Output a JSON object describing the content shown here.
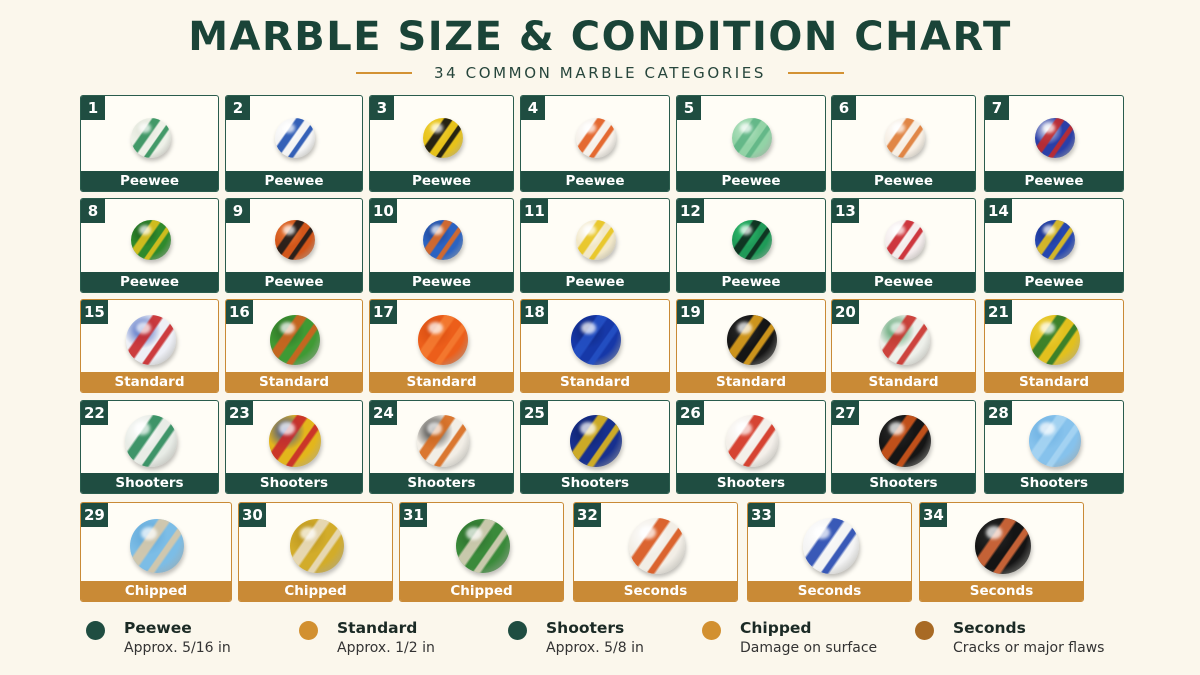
{
  "header": {
    "title": "MARBLE SIZE & CONDITION CHART",
    "subtitle": "34 COMMON MARBLE CATEGORIES"
  },
  "marbles": [
    {
      "number": "1",
      "label": "Peewee",
      "colors": [
        "#eef1e8",
        "#2f8f5a",
        "#e0e4d8"
      ]
    },
    {
      "number": "2",
      "label": "Peewee",
      "colors": [
        "#f4f4f4",
        "#1e4fb0",
        "#ffffff"
      ]
    },
    {
      "number": "3",
      "label": "Peewee",
      "colors": [
        "#e7c21a",
        "#111111",
        "#f0d23a"
      ]
    },
    {
      "number": "4",
      "label": "Peewee",
      "colors": [
        "#f6f1ea",
        "#e25a1c",
        "#ffffff"
      ]
    },
    {
      "number": "5",
      "label": "Peewee",
      "colors": [
        "#92d3a6",
        "#5fb585",
        "#b8e3c4"
      ]
    },
    {
      "number": "6",
      "label": "Peewee",
      "colors": [
        "#f7efe4",
        "#de7a34",
        "#ffffff"
      ]
    },
    {
      "number": "7",
      "label": "Peewee",
      "colors": [
        "#2a3fa8",
        "#c42a2a",
        "#f2f2f2"
      ]
    },
    {
      "number": "8",
      "label": "Peewee",
      "colors": [
        "#2f8a2c",
        "#e0c21c",
        "#1a5a1a"
      ]
    },
    {
      "number": "9",
      "label": "Peewee",
      "colors": [
        "#d2561a",
        "#1a1a1a",
        "#e87a3a"
      ]
    },
    {
      "number": "10",
      "label": "Peewee",
      "colors": [
        "#2b63c2",
        "#e06a22",
        "#1d3f8c"
      ]
    },
    {
      "number": "11",
      "label": "Peewee",
      "colors": [
        "#f2e8c8",
        "#e8c41c",
        "#ffffff"
      ]
    },
    {
      "number": "12",
      "label": "Peewee",
      "colors": [
        "#1f9a58",
        "#0d2a1c",
        "#2ec06e"
      ]
    },
    {
      "number": "13",
      "label": "Peewee",
      "colors": [
        "#f4ecec",
        "#c9222a",
        "#ffffff"
      ]
    },
    {
      "number": "14",
      "label": "Peewee",
      "colors": [
        "#2546b0",
        "#e6c21c",
        "#1a2f86"
      ]
    },
    {
      "number": "15",
      "label": "Standard",
      "colors": [
        "#eef0f6",
        "#c8282a",
        "#2a4fb8"
      ]
    },
    {
      "number": "16",
      "label": "Standard",
      "colors": [
        "#3f9a34",
        "#d2611e",
        "#2a6a22"
      ]
    },
    {
      "number": "17",
      "label": "Standard",
      "colors": [
        "#ec5e1a",
        "#f47a30",
        "#d44a10"
      ]
    },
    {
      "number": "18",
      "label": "Standard",
      "colors": [
        "#1638a8",
        "#2450c4",
        "#0d2478"
      ]
    },
    {
      "number": "19",
      "label": "Standard",
      "colors": [
        "#151515",
        "#e0a11c",
        "#2a2a2a"
      ]
    },
    {
      "number": "20",
      "label": "Standard",
      "colors": [
        "#eef0ea",
        "#c9302a",
        "#2a8a4a"
      ]
    },
    {
      "number": "21",
      "label": "Standard",
      "colors": [
        "#e2c01e",
        "#2a7a2a",
        "#f0d440"
      ]
    },
    {
      "number": "22",
      "label": "Shooters",
      "colors": [
        "#e8ece6",
        "#2a8a5a",
        "#ffffff"
      ]
    },
    {
      "number": "23",
      "label": "Shooters",
      "colors": [
        "#e3b61c",
        "#c8282a",
        "#1f3fa8"
      ]
    },
    {
      "number": "24",
      "label": "Shooters",
      "colors": [
        "#f2eee6",
        "#d86a1c",
        "#1a1a1a"
      ]
    },
    {
      "number": "25",
      "label": "Shooters",
      "colors": [
        "#17308e",
        "#e0b81c",
        "#0d1f66"
      ]
    },
    {
      "number": "26",
      "label": "Shooters",
      "colors": [
        "#f4f0ea",
        "#d2301e",
        "#ffffff"
      ]
    },
    {
      "number": "27",
      "label": "Shooters",
      "colors": [
        "#151515",
        "#d2561a",
        "#2a2a2a"
      ]
    },
    {
      "number": "28",
      "label": "Shooters",
      "colors": [
        "#86c2ec",
        "#a6d4f2",
        "#6aaee0"
      ]
    },
    {
      "number": "29",
      "label": "Chipped",
      "colors": [
        "#7cbde6",
        "#d8c8a8",
        "#5fa6d8"
      ]
    },
    {
      "number": "30",
      "label": "Chipped",
      "colors": [
        "#d2ac2a",
        "#e8dcc0",
        "#b8921e"
      ]
    },
    {
      "number": "31",
      "label": "Chipped",
      "colors": [
        "#3a8a3a",
        "#d8d0b8",
        "#2a6a2a"
      ]
    },
    {
      "number": "32",
      "label": "Seconds",
      "colors": [
        "#f2eee6",
        "#d8541a",
        "#ffffff"
      ]
    },
    {
      "number": "33",
      "label": "Seconds",
      "colors": [
        "#f4f4f4",
        "#2448b0",
        "#ffffff"
      ]
    },
    {
      "number": "34",
      "label": "Seconds",
      "colors": [
        "#141414",
        "#d86a3a",
        "#2a2a2a"
      ]
    }
  ],
  "legend": [
    {
      "name": "Peewee",
      "desc": "Approx. 5/16 in",
      "color": "#1f4d41"
    },
    {
      "name": "Standard",
      "desc": "Approx. 1/2 in",
      "color": "#d29030"
    },
    {
      "name": "Shooters",
      "desc": "Approx. 5/8 in",
      "color": "#1f4d41"
    },
    {
      "name": "Chipped",
      "desc": "Damage on surface",
      "color": "#d29030"
    },
    {
      "name": "Seconds",
      "desc": "Cracks or major flaws",
      "color": "#a86a24"
    }
  ]
}
